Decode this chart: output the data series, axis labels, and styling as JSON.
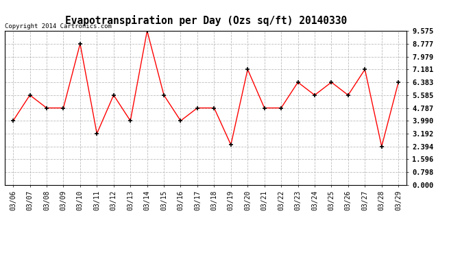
{
  "title": "Evapotranspiration per Day (Ozs sq/ft) 20140330",
  "copyright": "Copyright 2014 Cartronics.com",
  "dates": [
    "03/06",
    "03/07",
    "03/08",
    "03/09",
    "03/10",
    "03/11",
    "03/12",
    "03/13",
    "03/14",
    "03/15",
    "03/16",
    "03/17",
    "03/18",
    "03/19",
    "03/20",
    "03/21",
    "03/22",
    "03/23",
    "03/24",
    "03/25",
    "03/26",
    "03/27",
    "03/28",
    "03/29"
  ],
  "values": [
    3.99,
    5.585,
    4.787,
    4.787,
    8.777,
    3.192,
    5.585,
    3.99,
    9.575,
    5.585,
    3.99,
    4.787,
    4.787,
    2.5,
    7.181,
    4.787,
    4.787,
    6.383,
    5.585,
    6.383,
    5.585,
    7.181,
    2.394,
    6.383
  ],
  "yticks": [
    0.0,
    0.798,
    1.596,
    2.394,
    3.192,
    3.99,
    4.787,
    5.585,
    6.383,
    7.181,
    7.979,
    8.777,
    9.575
  ],
  "ylim": [
    0.0,
    9.575
  ],
  "line_color": "red",
  "marker_color": "black",
  "background_color": "#ffffff",
  "grid_color": "#bbbbbb",
  "legend_bg": "red",
  "legend_text_color": "white",
  "title_fontsize": 10.5,
  "tick_fontsize": 7,
  "copyright_fontsize": 6.5
}
